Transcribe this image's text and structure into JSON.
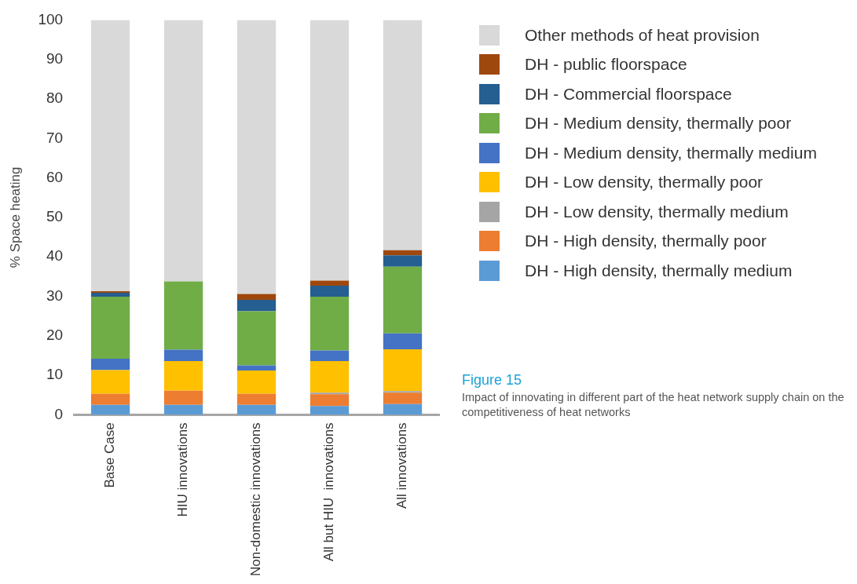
{
  "chart_data": {
    "type": "bar",
    "stacked": true,
    "ylabel": "% Space heating",
    "categories": [
      "Base Case",
      "HIU innovations",
      "Non-domestic innovations",
      "All but HIU  innovations",
      "All innovations"
    ],
    "ylim": [
      0,
      100
    ],
    "yticks": [
      0,
      10,
      20,
      30,
      40,
      50,
      60,
      70,
      80,
      90,
      100
    ],
    "grid": false,
    "legend": "right",
    "series": [
      {
        "name": "DH - High density, thermally medium",
        "color": "#5b9bd5",
        "values": [
          2.5,
          2.5,
          2.5,
          2.2,
          2.7
        ]
      },
      {
        "name": "DH - High density, thermally poor",
        "color": "#ed7d31",
        "values": [
          2.8,
          3.6,
          2.8,
          3.0,
          2.9
        ]
      },
      {
        "name": "DH - Low density, thermally medium",
        "color": "#a5a5a5",
        "values": [
          0,
          0,
          0,
          0.4,
          0.4
        ]
      },
      {
        "name": "DH - Low density, thermally poor",
        "color": "#ffc000",
        "values": [
          6.0,
          7.5,
          5.9,
          8.0,
          10.6
        ]
      },
      {
        "name": "DH - Medium density, thermally medium",
        "color": "#4472c4",
        "values": [
          2.9,
          2.9,
          1.3,
          2.7,
          4.0
        ]
      },
      {
        "name": "DH - Medium density, thermally poor",
        "color": "#70ad47",
        "values": [
          15.7,
          17.3,
          13.7,
          13.6,
          16.9
        ]
      },
      {
        "name": "DH - Commercial floorspace",
        "color": "#255e91",
        "values": [
          1.0,
          0,
          2.9,
          2.8,
          2.9
        ]
      },
      {
        "name": "DH - public floorspace",
        "color": "#9e480e",
        "values": [
          0.4,
          0,
          1.5,
          1.3,
          1.3
        ]
      },
      {
        "name": "Other methods of heat provision",
        "color": "#d9d9d9",
        "values": [
          68.7,
          66.2,
          69.4,
          66.0,
          58.3
        ]
      }
    ],
    "annotations": [
      "Figure 15",
      " Impact of innovating in different part of the heat network supply chain on the competitiveness of heat networks"
    ]
  }
}
